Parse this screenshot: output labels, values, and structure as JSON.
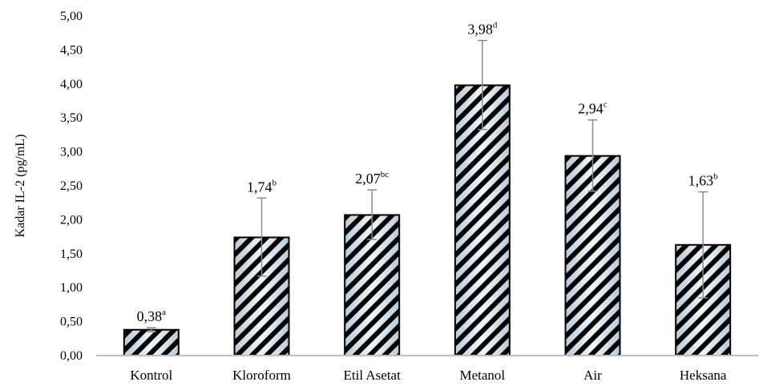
{
  "chart_data": {
    "type": "bar",
    "ylabel": "Kadar IL-2 (pg/mL)",
    "xlabel": "",
    "ylim": [
      0,
      5
    ],
    "y_ticks": [
      "0,00",
      "0,50",
      "1,00",
      "1,50",
      "2,00",
      "2,50",
      "3,00",
      "3,50",
      "4,00",
      "4,50",
      "5,00"
    ],
    "categories": [
      "Kontrol",
      "Kloroform",
      "Etil Asetat",
      "Metanol",
      "Air",
      "Heksana"
    ],
    "values": [
      0.38,
      1.74,
      2.07,
      3.98,
      2.94,
      1.63
    ],
    "error_upper": [
      0.41,
      2.32,
      2.44,
      4.64,
      3.47,
      2.41
    ],
    "error_lower": [
      0.35,
      1.17,
      1.71,
      3.33,
      2.42,
      0.85
    ],
    "value_labels": [
      "0,38",
      "1,74",
      "2,07",
      "3,98",
      "2,94",
      "1,63"
    ],
    "significance": [
      "a",
      "b",
      "bc",
      "d",
      "c",
      "b"
    ],
    "grid": false,
    "legend": "none",
    "colors": {
      "bar_fill_light": "#e6eef5",
      "bar_fill_dark": "#b8cad9",
      "hatch": "#000000",
      "error_bar": "#8c8c8c",
      "axis": "#bfbfbf"
    }
  }
}
